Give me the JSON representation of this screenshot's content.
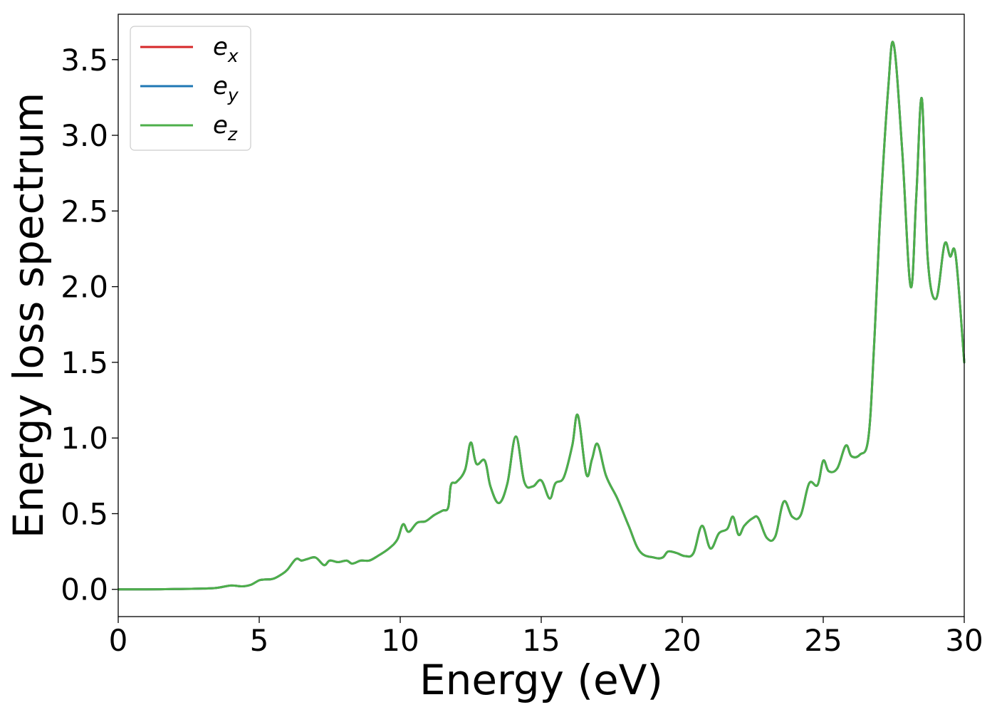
{
  "chart_data": {
    "type": "line",
    "xlabel": "Energy (eV)",
    "ylabel": "Energy loss spectrum",
    "xlim": [
      0,
      30
    ],
    "ylim": [
      -0.18,
      3.8
    ],
    "xticks": [
      0,
      5,
      10,
      15,
      20,
      25,
      30
    ],
    "yticks": [
      0.0,
      0.5,
      1.0,
      1.5,
      2.0,
      2.5,
      3.0,
      3.5
    ],
    "xtick_labels": [
      "0",
      "5",
      "10",
      "15",
      "20",
      "25",
      "30"
    ],
    "ytick_labels": [
      "0.0",
      "0.5",
      "1.0",
      "1.5",
      "2.0",
      "2.5",
      "3.0",
      "3.5"
    ],
    "grid": false,
    "legend_position": "top-left",
    "series": [
      {
        "name_base": "e",
        "name_sub": "x",
        "color": "#d62728"
      },
      {
        "name_base": "e",
        "name_sub": "y",
        "color": "#1f77b4"
      },
      {
        "name_base": "e",
        "name_sub": "z",
        "color": "#4daf4a"
      }
    ],
    "x": [
      0,
      1,
      2,
      3,
      3.5,
      4,
      4.4,
      4.7,
      5,
      5.2,
      5.5,
      5.8,
      6,
      6.3,
      6.5,
      6.7,
      7,
      7.3,
      7.5,
      7.8,
      8.1,
      8.3,
      8.6,
      8.9,
      9.2,
      9.6,
      9.9,
      10.1,
      10.3,
      10.6,
      10.9,
      11.2,
      11.5,
      11.7,
      11.8,
      12,
      12.3,
      12.5,
      12.7,
      13,
      13.2,
      13.5,
      13.8,
      14.1,
      14.4,
      14.7,
      15,
      15.3,
      15.5,
      15.8,
      16.1,
      16.3,
      16.6,
      16.8,
      17,
      17.3,
      17.7,
      18.1,
      18.5,
      19,
      19.3,
      19.5,
      19.8,
      20.1,
      20.4,
      20.7,
      21,
      21.3,
      21.6,
      21.8,
      22,
      22.2,
      22.5,
      22.7,
      23,
      23.3,
      23.6,
      23.9,
      24.2,
      24.5,
      24.8,
      25,
      25.2,
      25.5,
      25.8,
      26,
      26.3,
      26.6,
      26.8,
      27,
      27.3,
      27.5,
      27.8,
      28.1,
      28.3,
      28.5,
      28.7,
      29,
      29.3,
      29.5,
      29.7,
      30
    ],
    "values": [
      0,
      0,
      0.002,
      0.005,
      0.01,
      0.025,
      0.02,
      0.03,
      0.06,
      0.065,
      0.07,
      0.1,
      0.13,
      0.2,
      0.19,
      0.2,
      0.21,
      0.16,
      0.19,
      0.18,
      0.19,
      0.17,
      0.19,
      0.19,
      0.22,
      0.27,
      0.33,
      0.43,
      0.38,
      0.44,
      0.45,
      0.49,
      0.52,
      0.54,
      0.69,
      0.71,
      0.79,
      0.97,
      0.83,
      0.85,
      0.68,
      0.57,
      0.7,
      1.01,
      0.71,
      0.68,
      0.72,
      0.6,
      0.7,
      0.74,
      0.95,
      1.15,
      0.76,
      0.86,
      0.96,
      0.75,
      0.6,
      0.42,
      0.25,
      0.21,
      0.21,
      0.25,
      0.24,
      0.22,
      0.24,
      0.42,
      0.27,
      0.37,
      0.4,
      0.48,
      0.36,
      0.42,
      0.47,
      0.47,
      0.34,
      0.35,
      0.58,
      0.48,
      0.49,
      0.7,
      0.69,
      0.85,
      0.78,
      0.8,
      0.95,
      0.88,
      0.89,
      1.0,
      1.6,
      2.4,
      3.3,
      3.6,
      2.9,
      2.0,
      2.6,
      3.24,
      2.2,
      1.92,
      2.28,
      2.2,
      2.2,
      1.5
    ]
  }
}
